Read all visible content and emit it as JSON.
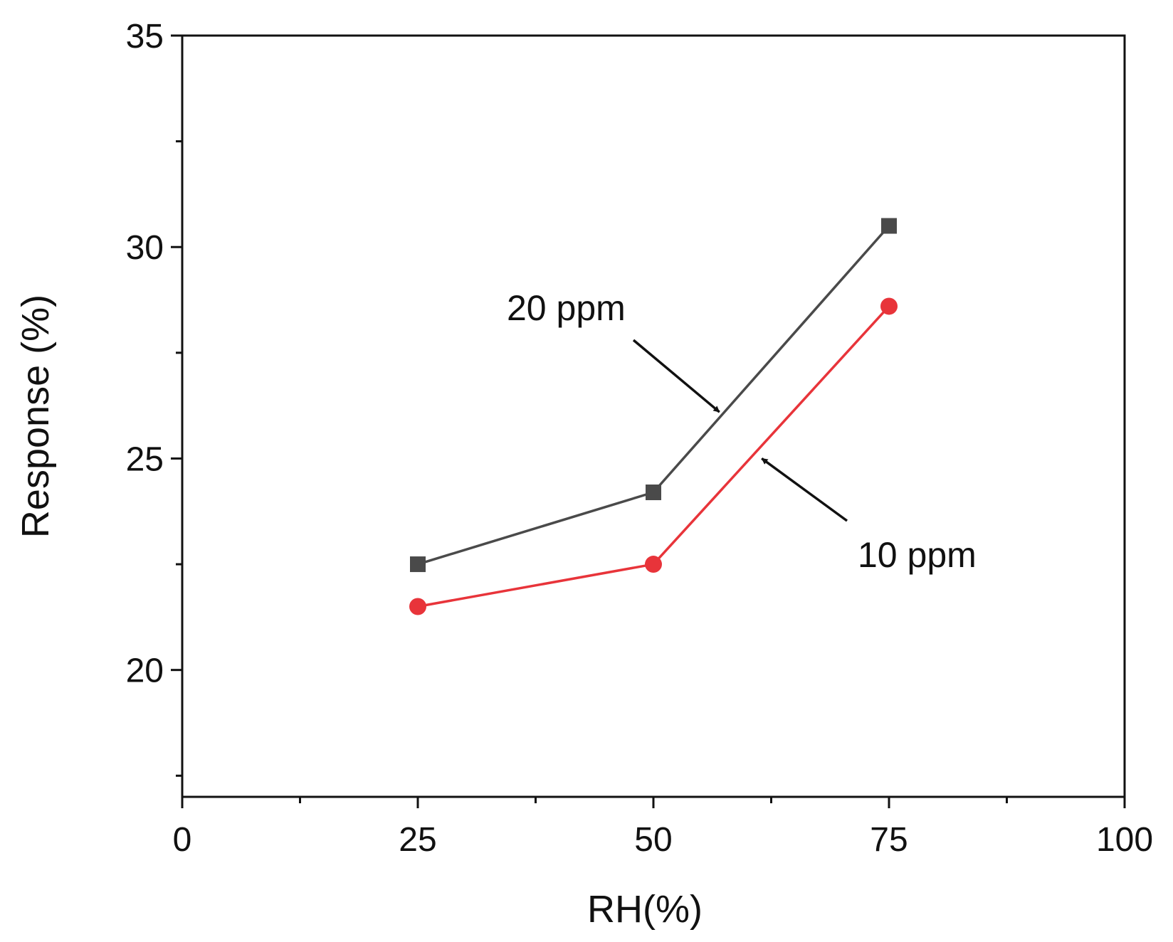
{
  "chart_data": {
    "type": "line",
    "title": "",
    "xlabel": "RH(%)",
    "ylabel": "Response (%)",
    "xlim": [
      0,
      100
    ],
    "ylim": [
      17,
      35
    ],
    "x_ticks": [
      0,
      25,
      50,
      75,
      100
    ],
    "x_tick_labels": [
      "0",
      "25",
      "50",
      "75",
      "100"
    ],
    "x_minor_ticks": [
      12.5,
      37.5,
      62.5,
      87.5
    ],
    "y_ticks": [
      20,
      25,
      30,
      35
    ],
    "y_tick_labels": [
      "20",
      "25",
      "30",
      "35"
    ],
    "y_minor_ticks": [
      17.5,
      22.5,
      27.5,
      32.5
    ],
    "grid": false,
    "legend": "none",
    "series": [
      {
        "name": "20 ppm",
        "x": [
          25,
          50,
          75
        ],
        "values": [
          22.5,
          24.2,
          30.5
        ],
        "color": "#4a4a4a",
        "marker": "square"
      },
      {
        "name": "10 ppm",
        "x": [
          25,
          50,
          75
        ],
        "values": [
          21.5,
          22.5,
          28.6
        ],
        "color": "#e8343a",
        "marker": "circle"
      }
    ],
    "annotations": [
      {
        "text": "20 ppm",
        "series": "20 ppm",
        "arrow_to": [
          57,
          26.1
        ]
      },
      {
        "text": "10 ppm",
        "series": "10 ppm",
        "arrow_to": [
          61.5,
          25.0
        ]
      }
    ]
  }
}
